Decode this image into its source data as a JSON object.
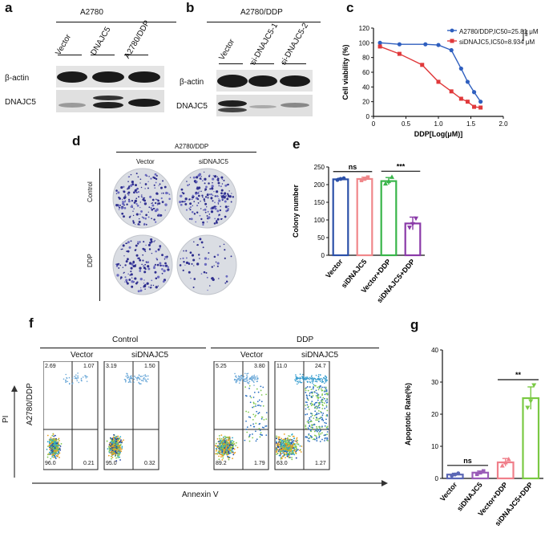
{
  "panels": {
    "a": {
      "letter": "a",
      "cell_line": "A2780",
      "lanes": [
        "Vector",
        "DNAJC5",
        "A2780/DDP"
      ],
      "bands": [
        "β-actin",
        "DNAJC5"
      ]
    },
    "b": {
      "letter": "b",
      "cell_line": "A2780/DDP",
      "lanes": [
        "Vector",
        "si-DNAJC5-1",
        "si-DNAJC5-2"
      ],
      "bands": [
        "β-actin",
        "DNAJC5"
      ]
    },
    "c": {
      "letter": "c",
      "legend": [
        "A2780/DDP,IC50=25.81 μM",
        "siDNAJC5,IC50=8.934 μM"
      ],
      "significance": "***"
    },
    "d": {
      "letter": "d",
      "cell_line": "A2780/DDP",
      "columns": [
        "Vector",
        "siDNAJC5"
      ],
      "rows": [
        "Control",
        "DDP"
      ]
    },
    "e": {
      "letter": "e"
    },
    "f": {
      "letter": "f",
      "groups": [
        "Control",
        "DDP"
      ],
      "columns": [
        "Vector",
        "siDNAJC5",
        "Vector",
        "siDNAJC5"
      ],
      "row_label": "A2780/DDP",
      "y_axis": "PI",
      "x_axis": "Annexin V",
      "quadrants": [
        {
          "ul": "2.69",
          "ur": "1.07",
          "ll": "96.0",
          "lr": "0.21"
        },
        {
          "ul": "3.19",
          "ur": "1.50",
          "ll": "95.0",
          "lr": "0.32"
        },
        {
          "ul": "5.25",
          "ur": "3.80",
          "ll": "89.2",
          "lr": "1.79"
        },
        {
          "ul": "11.0",
          "ur": "24.7",
          "ll": "63.0",
          "lr": "1.27"
        }
      ]
    },
    "g": {
      "letter": "g"
    }
  },
  "chart_data": [
    {
      "id": "c",
      "type": "line",
      "title": "",
      "xlabel": "DDP[Log(μM)]",
      "ylabel": "Cell viability (%)",
      "xlim": [
        0,
        2.0
      ],
      "ylim": [
        0,
        120
      ],
      "xticks": [
        "0",
        "0.5",
        "1.0",
        "1.5",
        "2.0"
      ],
      "yticks": [
        "0",
        "20",
        "40",
        "60",
        "80",
        "100",
        "120"
      ],
      "series": [
        {
          "name": "A2780/DDP,IC50=25.81 μM",
          "color": "#2f5fbf",
          "x": [
            0.1,
            0.4,
            0.8,
            1.0,
            1.2,
            1.35,
            1.45,
            1.55,
            1.65
          ],
          "y": [
            100,
            98,
            98,
            97,
            90,
            65,
            47,
            33,
            20
          ]
        },
        {
          "name": "siDNAJC5,IC50=8.934 μM",
          "color": "#e0393b",
          "x": [
            0.1,
            0.4,
            0.75,
            1.0,
            1.2,
            1.35,
            1.45,
            1.55,
            1.65
          ],
          "y": [
            95,
            85,
            70,
            47,
            34,
            24,
            20,
            13,
            12
          ]
        }
      ]
    },
    {
      "id": "e",
      "type": "bar",
      "ylabel": "Colony number",
      "ylim": [
        0,
        250
      ],
      "yticks": [
        "0",
        "50",
        "100",
        "150",
        "200",
        "250"
      ],
      "categories": [
        "Vector",
        "siDNAJC5",
        "Vector+DDP",
        "siDNAJC5+DDP"
      ],
      "values": [
        215,
        216,
        210,
        90
      ],
      "errors": [
        3,
        5,
        10,
        18
      ],
      "points": [
        [
          213,
          216,
          218
        ],
        [
          212,
          216,
          221
        ],
        [
          203,
          210,
          222
        ],
        [
          78,
          88,
          104
        ]
      ],
      "colors": [
        "#2b50a8",
        "#f0878a",
        "#39b54a",
        "#8a3aa8"
      ],
      "comparisons": [
        {
          "from": 0,
          "to": 1,
          "label": "ns"
        },
        {
          "from": 2,
          "to": 3,
          "label": "***"
        }
      ]
    },
    {
      "id": "g",
      "type": "bar",
      "ylabel": "Apoptotic Rate(%)",
      "ylim": [
        0,
        40
      ],
      "yticks": [
        "0",
        "10",
        "20",
        "30",
        "40"
      ],
      "categories": [
        "Vector",
        "siDNAJC5",
        "Vector+DDP",
        "siDNAJC5+DDP"
      ],
      "values": [
        1.2,
        1.8,
        5.0,
        25.0
      ],
      "errors": [
        0.4,
        0.5,
        1.2,
        3.5
      ],
      "points": [
        [
          0.8,
          1.2,
          1.6
        ],
        [
          1.3,
          1.8,
          2.3
        ],
        [
          4.0,
          5.0,
          6.0
        ],
        [
          22,
          24,
          29
        ]
      ],
      "colors": [
        "#5a66b5",
        "#9a5cb8",
        "#f07f8a",
        "#7ac943"
      ],
      "comparisons": [
        {
          "from": 0,
          "to": 1,
          "label": "ns"
        },
        {
          "from": 2,
          "to": 3,
          "label": "**"
        }
      ]
    }
  ]
}
